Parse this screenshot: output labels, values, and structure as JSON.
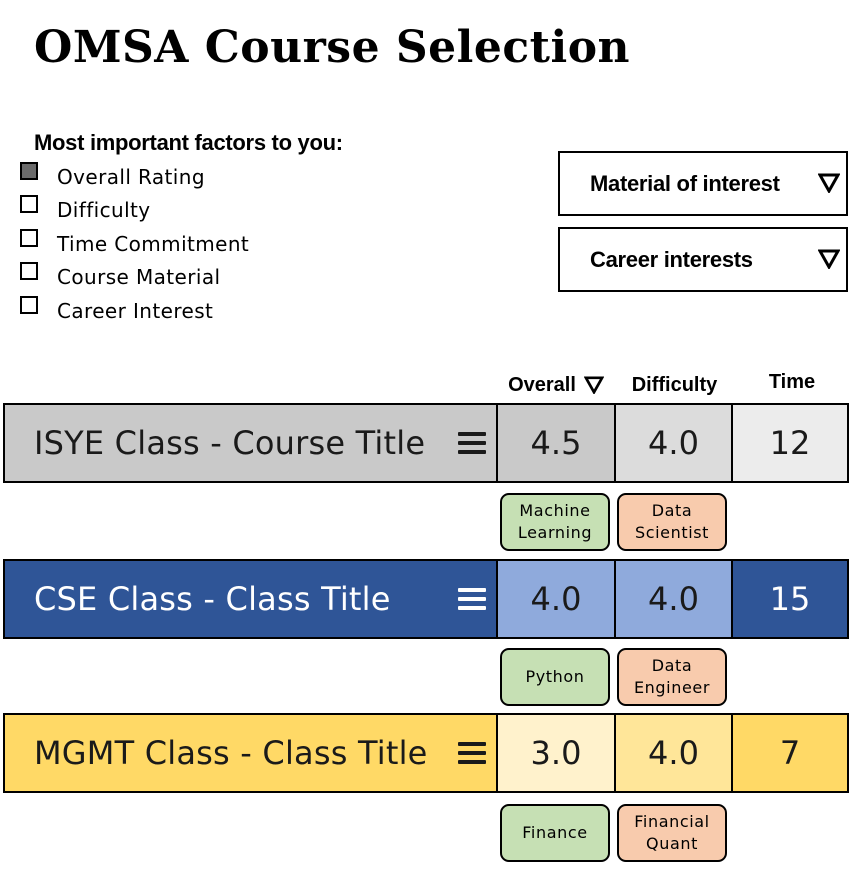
{
  "page_title": "OMSA Course Selection",
  "factors": {
    "heading": "Most important factors to you:",
    "items": [
      {
        "label": "Overall Rating",
        "checked": true
      },
      {
        "label": "Difficulty",
        "checked": false
      },
      {
        "label": "Time Commitment",
        "checked": false
      },
      {
        "label": "Course Material",
        "checked": false
      },
      {
        "label": "Career Interest",
        "checked": false
      }
    ]
  },
  "filters": {
    "material": {
      "label": "Material of interest",
      "icon": "triangle-down-icon"
    },
    "career": {
      "label": "Career interests",
      "icon": "triangle-down-icon"
    }
  },
  "columns": {
    "overall": {
      "label": "Overall",
      "sort_icon": "triangle-down-icon"
    },
    "difficulty": {
      "label": "Difficulty"
    },
    "time": {
      "label": "Time"
    }
  },
  "courses": [
    {
      "name": "ISYE Class - Course Title",
      "overall": "4.5",
      "difficulty": "4.0",
      "time": "12",
      "material_tag": "Machine\nLearning",
      "career_tag": "Data\nScientist",
      "colors": {
        "name_bg": "#c9c9c9",
        "name_text": "#1a1a1a",
        "overall_bg": "#c9c9c9",
        "difficulty_bg": "#dcdcdc",
        "time_bg": "#ececec",
        "cell_text": "#1a1a1a"
      }
    },
    {
      "name": "CSE Class - Class Title",
      "overall": "4.0",
      "difficulty": "4.0",
      "time": "15",
      "material_tag": "Python",
      "career_tag": "Data\nEngineer",
      "colors": {
        "name_bg": "#2f5597",
        "name_text": "#ffffff",
        "overall_bg": "#8faadc",
        "difficulty_bg": "#8faadc",
        "time_bg": "#2f5597",
        "cell_text": "#1a1a1a",
        "time_text": "#ffffff"
      }
    },
    {
      "name": "MGMT Class - Class Title",
      "overall": "3.0",
      "difficulty": "4.0",
      "time": "7",
      "material_tag": "Finance",
      "career_tag": "Financial\nQuant",
      "colors": {
        "name_bg": "#ffd966",
        "name_text": "#1a1a1a",
        "overall_bg": "#fff2cc",
        "difficulty_bg": "#ffe699",
        "time_bg": "#ffd966",
        "cell_text": "#1a1a1a"
      }
    }
  ]
}
